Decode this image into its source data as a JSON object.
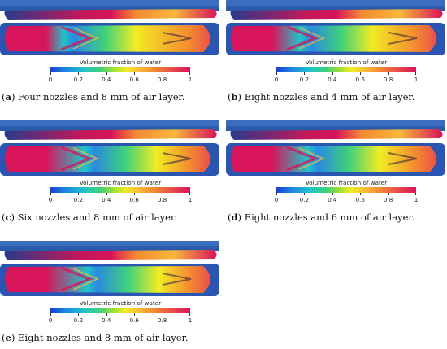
{
  "panels": [
    {
      "letter": "a",
      "text": "Four nozzles and 8 mm of air layer.",
      "fill_level": 0.15
    },
    {
      "letter": "b",
      "text": "Eight nozzles and 4 mm of air layer.",
      "fill_level": 0.35
    },
    {
      "letter": "c",
      "text": "Six nozzles and 8 mm of air layer.",
      "fill_level": 0.55
    },
    {
      "letter": "d",
      "text": "Eight nozzles and 6 mm of air layer.",
      "fill_level": 0.5
    },
    {
      "letter": "e",
      "text": "Eight nozzles and 8 mm of air layer.",
      "fill_level": 0.6
    }
  ],
  "colorbar": {
    "title": "Volumetric fraction of water",
    "ticks": [
      "0",
      "0.2",
      "0.4",
      "0.6",
      "0.8",
      "1"
    ],
    "min": 0,
    "max": 1,
    "colors": [
      "#1a3fd6",
      "#20c4c8",
      "#3fd27a",
      "#f2ec24",
      "#f48a30",
      "#d8145a"
    ]
  }
}
